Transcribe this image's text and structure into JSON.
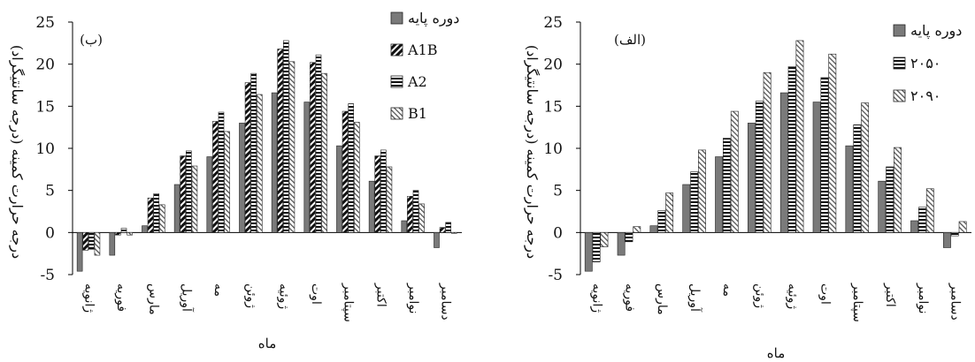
{
  "chart_data": [
    {
      "type": "bar",
      "panel_label": "(ب)",
      "xlabel": "ماه",
      "ylabel": "درجه حرارت کمینه (درجه سانتیگراد)",
      "ylim": [
        -5,
        25
      ],
      "yticks": [
        -5,
        0,
        5,
        10,
        15,
        20,
        25
      ],
      "categories": [
        "ژانویه",
        "فوریه",
        "مارس",
        "آوریل",
        "مه",
        "ژوئن",
        "ژوئیه",
        "اوت",
        "سپتامبر",
        "اکتبر",
        "نوامبر",
        "دسامبر"
      ],
      "legend_position": "right",
      "series": [
        {
          "name": "دوره پایه",
          "pattern": "solid",
          "values": [
            -4.6,
            -2.7,
            0.8,
            5.7,
            9.0,
            13.0,
            16.6,
            15.5,
            10.3,
            6.1,
            1.4,
            -1.8
          ]
        },
        {
          "name": "A1B",
          "pattern": "diagonal-dark",
          "values": [
            -2.1,
            -0.3,
            4.1,
            9.1,
            13.2,
            17.8,
            21.8,
            20.2,
            14.4,
            9.1,
            4.3,
            0.6
          ]
        },
        {
          "name": "A2",
          "pattern": "horizontal",
          "values": [
            -2.0,
            0.5,
            4.6,
            9.7,
            14.3,
            18.9,
            22.8,
            21.1,
            15.3,
            9.8,
            5.0,
            1.2
          ]
        },
        {
          "name": "B1",
          "pattern": "diagonal-light",
          "values": [
            -2.7,
            -0.3,
            3.3,
            7.9,
            12.0,
            16.4,
            20.3,
            18.9,
            13.1,
            7.8,
            3.4,
            -0.1
          ]
        }
      ]
    },
    {
      "type": "bar",
      "panel_label": "(الف)",
      "xlabel": "ماه",
      "ylabel": "درجه حرارت کمینه (درجه سانتیگراد)",
      "ylim": [
        -5,
        25
      ],
      "yticks": [
        -5,
        0,
        5,
        10,
        15,
        20,
        25
      ],
      "categories": [
        "ژانویه",
        "فوریه",
        "مارس",
        "آوریل",
        "مه",
        "ژوئن",
        "ژوئیه",
        "اوت",
        "سپتامبر",
        "اکتبر",
        "نوامبر",
        "دسامبر"
      ],
      "legend_position": "right",
      "series": [
        {
          "name": "دوره پایه",
          "pattern": "solid",
          "values": [
            -4.6,
            -2.7,
            0.8,
            5.7,
            9.0,
            13.0,
            16.6,
            15.5,
            10.3,
            6.1,
            1.4,
            -1.8
          ]
        },
        {
          "name": "۲۰۵۰",
          "pattern": "horizontal",
          "values": [
            -3.5,
            -1.1,
            2.6,
            7.2,
            11.2,
            15.6,
            19.7,
            18.4,
            12.8,
            7.8,
            3.0,
            -0.4
          ]
        },
        {
          "name": "۲۰۹۰",
          "pattern": "diagonal-light",
          "values": [
            -1.7,
            0.7,
            4.7,
            9.8,
            14.4,
            19.0,
            22.8,
            21.2,
            15.4,
            10.1,
            5.2,
            1.3
          ]
        }
      ]
    }
  ]
}
